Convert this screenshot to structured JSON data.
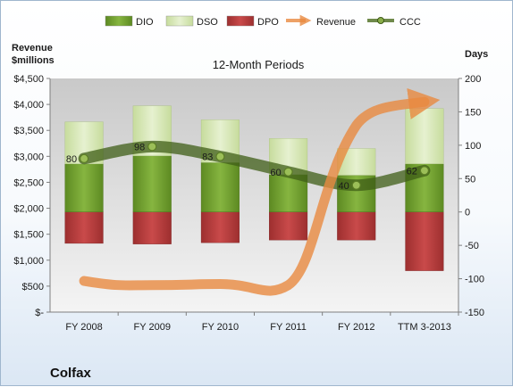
{
  "chart_data": {
    "type": "bar",
    "subtitle": "12-Month Periods",
    "company": "Colfax",
    "y_left_title_line1": "Revenue",
    "y_left_title_line2": "$millions",
    "y_right_title": "Days",
    "categories": [
      "FY 2008",
      "FY 2009",
      "FY 2010",
      "FY 2011",
      "FY 2012",
      "TTM 3-2013"
    ],
    "ylim_left": [
      0,
      4500
    ],
    "ylim_right": [
      -150,
      200
    ],
    "left_ticks": [
      {
        "value": 0,
        "label": "$-"
      },
      {
        "value": 500,
        "label": "$500"
      },
      {
        "value": 1000,
        "label": "$1,000"
      },
      {
        "value": 1500,
        "label": "$1,500"
      },
      {
        "value": 2000,
        "label": "$2,000"
      },
      {
        "value": 2500,
        "label": "$2,500"
      },
      {
        "value": 3000,
        "label": "$3,000"
      },
      {
        "value": 3500,
        "label": "$3,500"
      },
      {
        "value": 4000,
        "label": "$4,000"
      },
      {
        "value": 4500,
        "label": "$4,500"
      }
    ],
    "right_ticks": [
      {
        "value": -150,
        "label": "-150"
      },
      {
        "value": -100,
        "label": "-100"
      },
      {
        "value": -50,
        "label": "-50"
      },
      {
        "value": 0,
        "label": "0"
      },
      {
        "value": 50,
        "label": "50"
      },
      {
        "value": 100,
        "label": "100"
      },
      {
        "value": 150,
        "label": "150"
      },
      {
        "value": 200,
        "label": "200"
      }
    ],
    "series": [
      {
        "name": "DIO",
        "axis": "right",
        "color": "#6f9a2c",
        "values": [
          72,
          84,
          74,
          56,
          55,
          72
        ]
      },
      {
        "name": "DSO",
        "axis": "right",
        "color": "#d4e7b0",
        "values": [
          63,
          75,
          64,
          54,
          40,
          83
        ]
      },
      {
        "name": "DPO",
        "axis": "right",
        "color": "#b23a3a",
        "values": [
          -47,
          -48,
          -46,
          -42,
          -42,
          -88
        ]
      },
      {
        "name": "Revenue",
        "axis": "left",
        "color": "#e98a40",
        "values": [
          600,
          520,
          540,
          520,
          3600,
          4050
        ]
      },
      {
        "name": "CCC",
        "axis": "right",
        "color": "#4b6b1e",
        "values": [
          80,
          98,
          83,
          60,
          40,
          62
        ]
      }
    ],
    "ccc_labels": [
      "80",
      "98",
      "83",
      "60",
      "40",
      "62"
    ],
    "legend_position": "top",
    "grid": false
  }
}
